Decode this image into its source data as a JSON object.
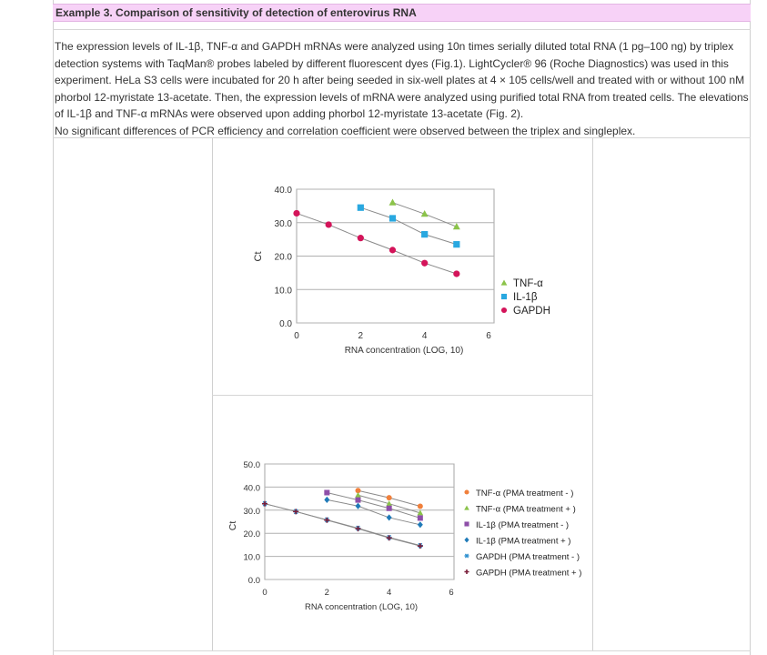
{
  "header": {
    "title": "Example 3. Comparison of sensitivity of detection of enterovirus RNA"
  },
  "body": {
    "paragraph1": "The expression levels of IL-1β, TNF-α and GAPDH mRNAs were analyzed using 10n times serially diluted total RNA (1 pg–100 ng) by triplex detection systems with TaqMan® probes labeled by different fluorescent dyes (Fig.1). LightCycler® 96 (Roche Diagnostics) was used in this experiment. HeLa S3 cells were incubated for 20 h after being seeded in six-well plates at 4 × 105 cells/well and treated with or without 100 nM phorbol 12-myristate 13-acetate. Then, the expression levels of mRNA were analyzed using purified total RNA from treated cells. The elevations of IL-1β and TNF-α mRNAs were observed upon adding phorbol 12-myristate 13-acetate (Fig. 2).",
    "paragraph2": "No significant differences of PCR efficiency and correlation coefficient were observed between the triplex and singleplex."
  },
  "colors": {
    "title_bg": "#f7d2f7",
    "tnf": "#8bc34a",
    "il1b": "#29a8e0",
    "gapdh": "#d4145a"
  },
  "chart_data": [
    {
      "type": "scatter",
      "xlabel": "RNA concentration (LOG, 10)",
      "ylabel": "Ct",
      "xticks": [
        "0",
        "2",
        "4",
        "6"
      ],
      "yticks": [
        "0.0",
        "10.0",
        "20.0",
        "30.0",
        "40.0"
      ],
      "xlim": [
        0,
        6
      ],
      "ylim": [
        0,
        40
      ],
      "grid": "horizontal",
      "legend": "right",
      "series": [
        {
          "name": "TNF-α",
          "marker": "triangle",
          "color": "#8bc34a",
          "x": [
            3,
            4,
            5
          ],
          "y": [
            36.0,
            32.6,
            28.8
          ]
        },
        {
          "name": "IL-1β",
          "marker": "square",
          "color": "#29a8e0",
          "x": [
            2,
            3,
            4,
            5
          ],
          "y": [
            34.5,
            31.3,
            26.5,
            23.5
          ]
        },
        {
          "name": "GAPDH",
          "marker": "circle",
          "color": "#d4145a",
          "x": [
            0,
            1,
            2,
            3,
            4,
            5
          ],
          "y": [
            32.8,
            29.4,
            25.4,
            21.8,
            17.9,
            14.7
          ]
        }
      ]
    },
    {
      "type": "scatter",
      "xlabel": "RNA concentration (LOG, 10)",
      "ylabel": "Ct",
      "xticks": [
        "0",
        "2",
        "4",
        "6"
      ],
      "yticks": [
        "0.0",
        "10.0",
        "20.0",
        "30.0",
        "40.0",
        "50.0"
      ],
      "xlim": [
        0,
        6
      ],
      "ylim": [
        0,
        50
      ],
      "grid": "horizontal",
      "legend": "right",
      "series": [
        {
          "name": "TNF-α (PMA treatment  - )",
          "marker": "circle",
          "color": "#f0803c",
          "x": [
            3,
            4,
            5
          ],
          "y": [
            38.5,
            35.4,
            31.7
          ]
        },
        {
          "name": "TNF-α (PMA treatment  + )",
          "marker": "triangle",
          "color": "#8bc34a",
          "x": [
            3,
            4,
            5
          ],
          "y": [
            36.5,
            32.8,
            28.8
          ]
        },
        {
          "name": "IL-1β  (PMA treatment  - )",
          "marker": "square",
          "color": "#8e4fa8",
          "x": [
            2,
            3,
            4,
            5
          ],
          "y": [
            37.6,
            34.4,
            30.8,
            26.6
          ]
        },
        {
          "name": "IL-1β  (PMA treatment  + )",
          "marker": "diamond",
          "color": "#1f7ab8",
          "x": [
            2,
            3,
            4,
            5
          ],
          "y": [
            34.5,
            31.8,
            26.8,
            23.7
          ]
        },
        {
          "name": "GAPDH (PMA treatment  - )",
          "marker": "asterisk",
          "color": "#2c8fcf",
          "x": [
            0,
            1,
            2,
            3,
            4,
            5
          ],
          "y": [
            32.8,
            29.4,
            25.8,
            22.2,
            18.2,
            14.7
          ]
        },
        {
          "name": "GAPDH (PMA treatment  + )",
          "marker": "plus",
          "color": "#7a1f3a",
          "x": [
            0,
            1,
            2,
            3,
            4,
            5
          ],
          "y": [
            32.8,
            29.4,
            25.7,
            22.0,
            18.0,
            14.5
          ]
        }
      ]
    }
  ]
}
